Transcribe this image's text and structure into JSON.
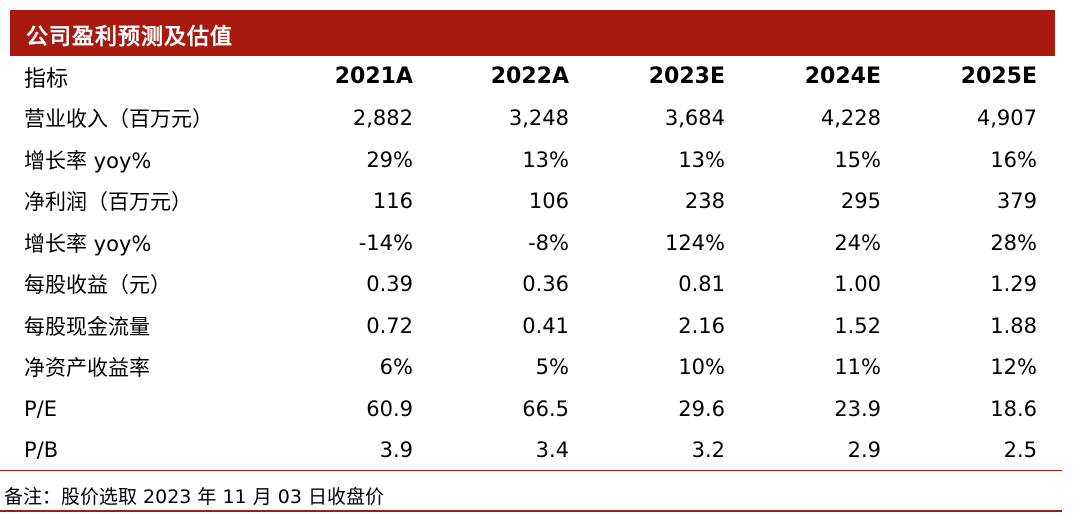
{
  "title": "公司盈利预测及估值",
  "table": {
    "headers": [
      "指标",
      "2021A",
      "2022A",
      "2023E",
      "2024E",
      "2025E"
    ],
    "rows": [
      [
        "营业收入（百万元）",
        "2,882",
        "3,248",
        "3,684",
        "4,228",
        "4,907"
      ],
      [
        "增长率 yoy%",
        "29%",
        "13%",
        "13%",
        "15%",
        "16%"
      ],
      [
        "净利润（百万元）",
        "116",
        "106",
        "238",
        "295",
        "379"
      ],
      [
        "增长率 yoy%",
        "-14%",
        "-8%",
        "124%",
        "24%",
        "28%"
      ],
      [
        "每股收益（元）",
        "0.39",
        "0.36",
        "0.81",
        "1.00",
        "1.29"
      ],
      [
        "每股现金流量",
        "0.72",
        "0.41",
        "2.16",
        "1.52",
        "1.88"
      ],
      [
        "净资产收益率",
        "6%",
        "5%",
        "10%",
        "11%",
        "12%"
      ],
      [
        "P/E",
        "60.9",
        "66.5",
        "29.6",
        "23.9",
        "18.6"
      ],
      [
        "P/B",
        "3.9",
        "3.4",
        "3.2",
        "2.9",
        "2.5"
      ]
    ]
  },
  "note": "备注：股价选取 2023 年 11 月 03 日收盘价",
  "colors": {
    "accent": "#a81a10"
  }
}
